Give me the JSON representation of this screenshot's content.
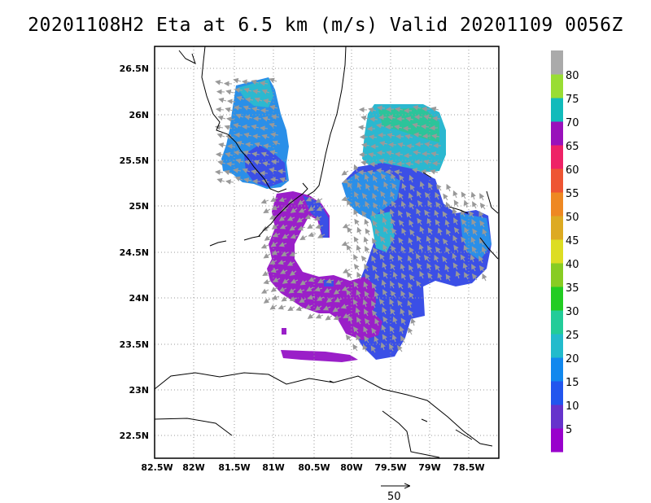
{
  "title": "20201108H2 Eta at 6.5 km (m/s) Valid 20201109 0056Z",
  "map": {
    "lon_labels": [
      "82.5W",
      "82W",
      "81.5W",
      "81W",
      "80.5W",
      "80W",
      "79.5W",
      "79W",
      "78.5W"
    ],
    "lat_labels": [
      "26.5N",
      "26N",
      "25.5N",
      "25N",
      "24.5N",
      "24N",
      "23.5N",
      "23N",
      "22.5N"
    ],
    "grid": "dotted"
  },
  "colorbar": {
    "labels": [
      "5",
      "10",
      "15",
      "20",
      "25",
      "30",
      "35",
      "40",
      "45",
      "50",
      "55",
      "60",
      "65",
      "70",
      "75",
      "80"
    ],
    "colors": [
      "#9900cc",
      "#6633cc",
      "#2255ee",
      "#1188ee",
      "#22bbcc",
      "#22cc99",
      "#22cc22",
      "#88cc22",
      "#dddd22",
      "#ddaa22",
      "#ee8822",
      "#ee5533",
      "#ee2266",
      "#9911bb",
      "#11bbbb",
      "#99dd33",
      "#aaaaaa"
    ]
  },
  "reference_vector": {
    "label": "50"
  }
}
